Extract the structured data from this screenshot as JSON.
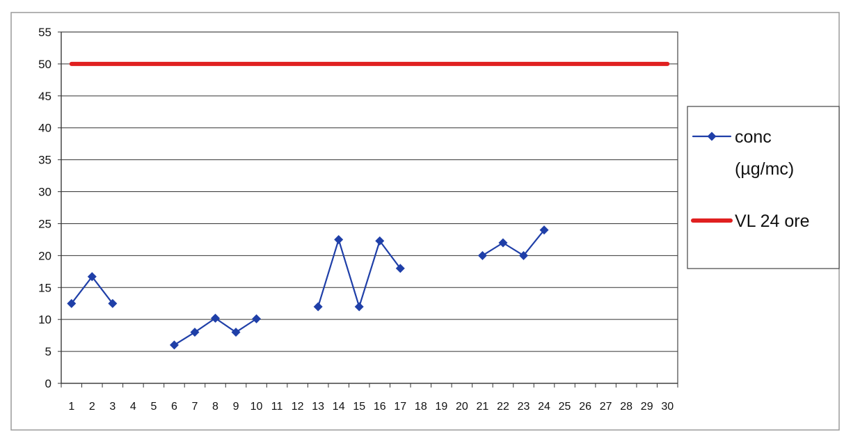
{
  "chart_data": {
    "type": "line",
    "title": "",
    "xlabel": "",
    "ylabel": "",
    "x": [
      1,
      2,
      3,
      4,
      5,
      6,
      7,
      8,
      9,
      10,
      11,
      12,
      13,
      14,
      15,
      16,
      17,
      18,
      19,
      20,
      21,
      22,
      23,
      24,
      25,
      26,
      27,
      28,
      29,
      30
    ],
    "xlim": [
      1,
      30
    ],
    "ylim": [
      0,
      55
    ],
    "yticks": [
      0,
      5,
      10,
      15,
      20,
      25,
      30,
      35,
      40,
      45,
      50,
      55
    ],
    "grid": true,
    "legend_position": "right",
    "series": [
      {
        "name": "conc (µg/mc)",
        "legend_lines": [
          "conc",
          "(µg/mc)"
        ],
        "color": "#1f3fa8",
        "marker": "diamond",
        "values": [
          12.5,
          16.7,
          12.5,
          null,
          null,
          6,
          8,
          10.2,
          8,
          10.1,
          null,
          null,
          12,
          22.5,
          12,
          22.3,
          18,
          null,
          null,
          null,
          20,
          22,
          20,
          24,
          null,
          null,
          null,
          null,
          null,
          null
        ]
      },
      {
        "name": "VL 24 ore",
        "legend_lines": [
          "VL 24 ore"
        ],
        "color": "#e02020",
        "marker": "none",
        "values": [
          50,
          50,
          50,
          50,
          50,
          50,
          50,
          50,
          50,
          50,
          50,
          50,
          50,
          50,
          50,
          50,
          50,
          50,
          50,
          50,
          50,
          50,
          50,
          50,
          50,
          50,
          50,
          50,
          50,
          50
        ]
      }
    ]
  }
}
